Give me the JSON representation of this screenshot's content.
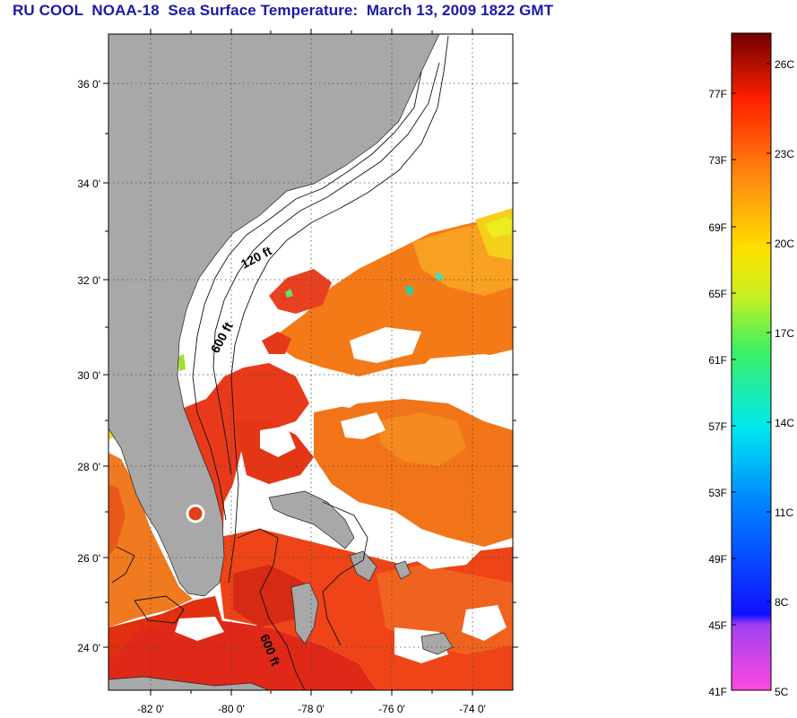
{
  "title": "RU COOL  NOAA-18  Sea Surface Temperature:  March 13, 2009 1822 GMT",
  "map": {
    "lat_labels": [
      "36 0'",
      "34 0'",
      "32 0'",
      "30 0'",
      "28 0'",
      "26 0'",
      "24 0'"
    ],
    "lon_labels": [
      "-82 0'",
      "-80 0'",
      "-78 0'",
      "-76 0'",
      "-74 0'"
    ],
    "contour_labels": [
      "120 ft",
      "600 ft",
      "600 ft"
    ]
  },
  "colorbar": {
    "fahrenheit_labels": [
      "77F",
      "73F",
      "69F",
      "65F",
      "61F",
      "57F",
      "53F",
      "49F",
      "45F",
      "41F"
    ],
    "celsius_labels": [
      "26C",
      "23C",
      "20C",
      "17C",
      "14C",
      "11C",
      "8C",
      "5C"
    ]
  },
  "colors": {
    "land": "#a8a8a8",
    "cloud_mask": "#ffffff",
    "title": "#1a1aa8",
    "warm_water": "#e83010",
    "mid_water": "#f47a18"
  }
}
